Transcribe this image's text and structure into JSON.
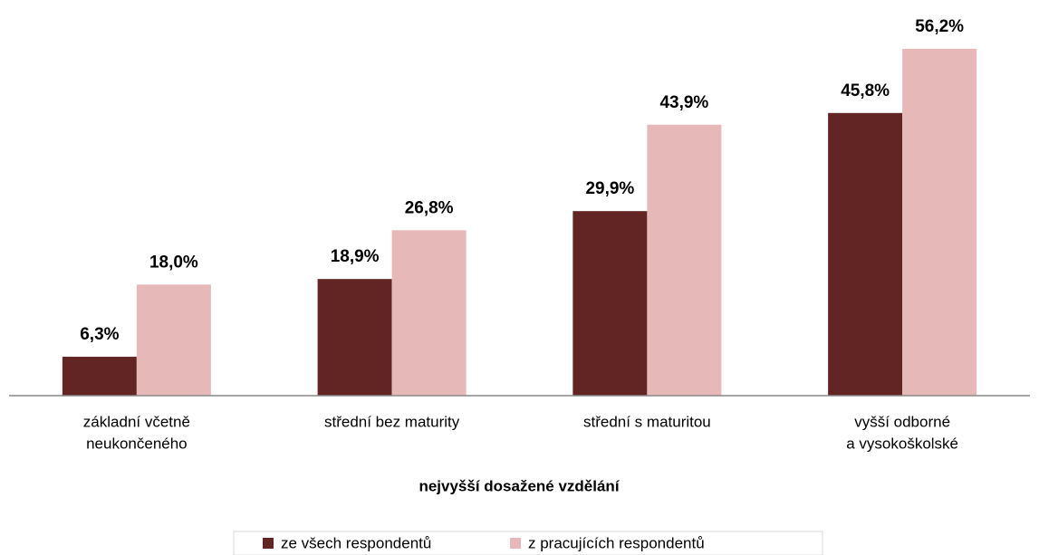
{
  "chart_data": {
    "type": "bar",
    "categories": [
      [
        "základní včetně",
        "neukončeného"
      ],
      [
        "střední bez maturity"
      ],
      [
        "střední s maturitou"
      ],
      [
        "vyšší odborné",
        "a vysokoškolské"
      ]
    ],
    "x_label": "nejvyšší dosažené vzdělání",
    "series": [
      {
        "name": "ze všech respondentů",
        "color": "#632523",
        "values": [
          6.3,
          18.9,
          29.9,
          45.8
        ],
        "value_labels": [
          "6,3%",
          "18,9%",
          "29,9%",
          "45,8%"
        ]
      },
      {
        "name": "z pracujících respondentů",
        "color": "#e6b9b8",
        "values": [
          18.0,
          26.8,
          43.9,
          56.2
        ],
        "value_labels": [
          "18,0%",
          "26,8%",
          "43,9%",
          "56,2%"
        ]
      }
    ],
    "ylim": [
      0,
      60
    ],
    "grid": false,
    "legend": "bottom"
  }
}
